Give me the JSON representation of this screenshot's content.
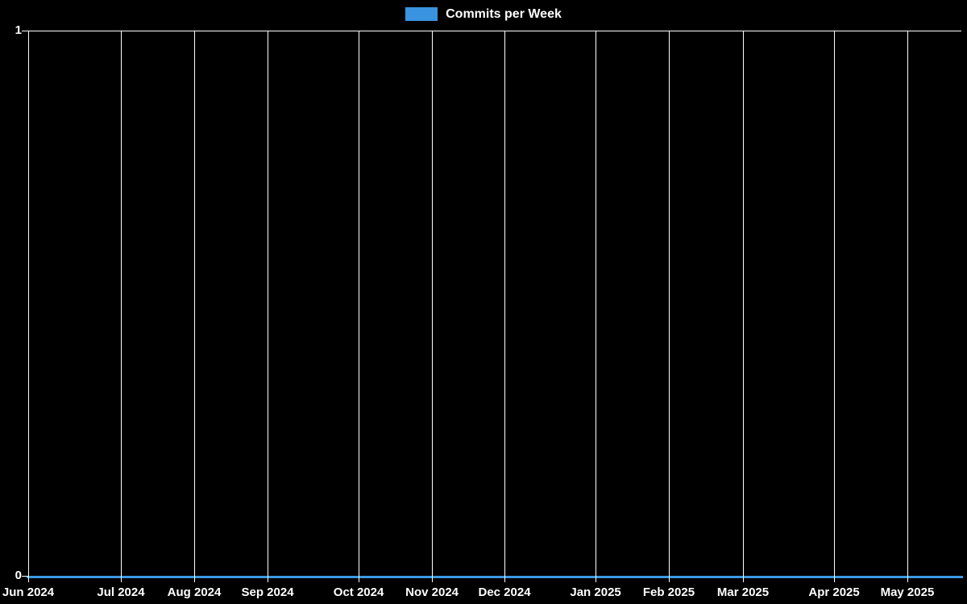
{
  "page": {
    "background": "#000000",
    "text_color": "#ffffff",
    "grid_color": "#ffffff"
  },
  "legend": {
    "label": "Commits per Week",
    "swatch_color": "#3a93e0"
  },
  "chart_data": {
    "type": "line",
    "title": "",
    "legend": [
      "Commits per Week"
    ],
    "legend_position": "top-center",
    "background": "#000000",
    "grid": true,
    "grid_color": "#ffffff",
    "line_color": "#3a99e6",
    "xlabel": "",
    "ylabel": "",
    "ylim": [
      0,
      1
    ],
    "y_ticks": [
      "0",
      "1"
    ],
    "categories": [
      "Jun 2024",
      "Jul 2024",
      "Aug 2024",
      "Sep 2024",
      "Oct 2024",
      "Nov 2024",
      "Dec 2024",
      "Jan 2025",
      "Feb 2025",
      "Mar 2025",
      "Apr 2025",
      "May 2025"
    ],
    "series": [
      {
        "name": "Commits per Week",
        "note": "flat line at 0 commits for every week across the entire range",
        "values": [
          0,
          0,
          0,
          0,
          0,
          0,
          0,
          0,
          0,
          0,
          0,
          0
        ]
      }
    ],
    "x_ticks": [
      {
        "label": "Jun 2024",
        "pos": 0.0
      },
      {
        "label": "Jul 2024",
        "pos": 0.0993
      },
      {
        "label": "Aug 2024",
        "pos": 0.1779
      },
      {
        "label": "Sep 2024",
        "pos": 0.2565
      },
      {
        "label": "Oct 2024",
        "pos": 0.3541
      },
      {
        "label": "Nov 2024",
        "pos": 0.4327
      },
      {
        "label": "Dec 2024",
        "pos": 0.5104
      },
      {
        "label": "Jan 2025",
        "pos": 0.608
      },
      {
        "label": "Feb 2025",
        "pos": 0.6865
      },
      {
        "label": "Mar 2025",
        "pos": 0.766
      },
      {
        "label": "Apr 2025",
        "pos": 0.8636
      },
      {
        "label": "May 2025",
        "pos": 0.9421
      }
    ]
  }
}
